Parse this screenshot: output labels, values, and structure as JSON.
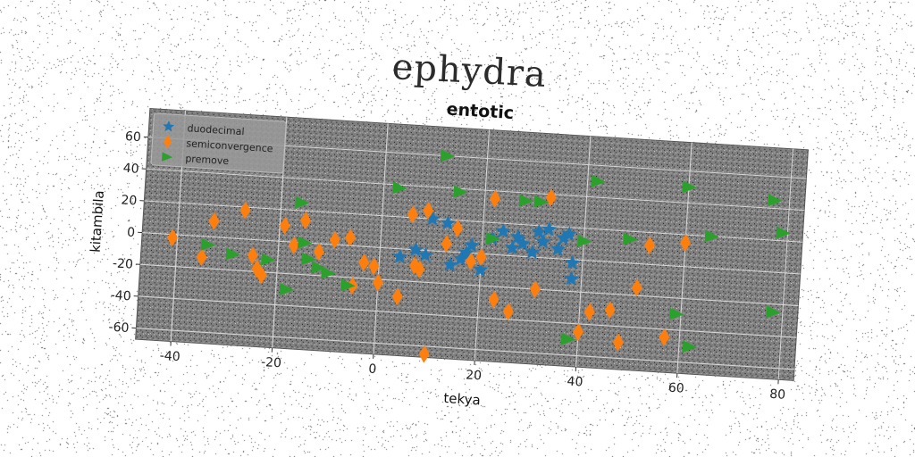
{
  "page": {
    "title": "ephydra"
  },
  "chart_data": {
    "type": "scatter",
    "title": "entotic",
    "xlabel": "tekya",
    "ylabel": "kitambila",
    "xlim": [
      -47,
      83
    ],
    "ylim": [
      -67,
      78
    ],
    "xticks": [
      -40,
      -20,
      0,
      20,
      40,
      60,
      80
    ],
    "yticks": [
      -60,
      -40,
      -20,
      0,
      20,
      40,
      60
    ],
    "grid": true,
    "legend_position": "top-left",
    "background_color": "#808080",
    "series": [
      {
        "name": "duodecimal",
        "marker": "star",
        "color": "#1f77b4",
        "points": [
          [
            4,
            -5
          ],
          [
            7,
            0
          ],
          [
            9,
            -3
          ],
          [
            10,
            20
          ],
          [
            13,
            18
          ],
          [
            14,
            -8
          ],
          [
            16,
            -4
          ],
          [
            17,
            0
          ],
          [
            18,
            5
          ],
          [
            22,
            10
          ],
          [
            24,
            15
          ],
          [
            26,
            5
          ],
          [
            27,
            12
          ],
          [
            28,
            8
          ],
          [
            30,
            3
          ],
          [
            31,
            16
          ],
          [
            32,
            10
          ],
          [
            33,
            18
          ],
          [
            35,
            6
          ],
          [
            36,
            13
          ],
          [
            37,
            16
          ],
          [
            38,
            -2
          ],
          [
            38,
            -12
          ],
          [
            20,
            -10
          ]
        ]
      },
      {
        "name": "semiconvergence",
        "color": "#ff7f0e",
        "marker": "diamond",
        "points": [
          [
            -41,
            -2
          ],
          [
            -35,
            -13
          ],
          [
            -33,
            10
          ],
          [
            -27,
            18
          ],
          [
            -25,
            -10
          ],
          [
            -24,
            -18
          ],
          [
            -23,
            -22
          ],
          [
            -19,
            10
          ],
          [
            -17,
            -2
          ],
          [
            -15,
            14
          ],
          [
            -12,
            -5
          ],
          [
            -9,
            3
          ],
          [
            -6,
            5
          ],
          [
            -5,
            -25
          ],
          [
            -3,
            -10
          ],
          [
            -1,
            -12
          ],
          [
            0,
            -22
          ],
          [
            4,
            -30
          ],
          [
            6,
            22
          ],
          [
            7,
            -10
          ],
          [
            8,
            -12
          ],
          [
            9,
            25
          ],
          [
            10,
            -65
          ],
          [
            13,
            5
          ],
          [
            15,
            15
          ],
          [
            18,
            -5
          ],
          [
            20,
            -2
          ],
          [
            22,
            35
          ],
          [
            23,
            -28
          ],
          [
            26,
            -35
          ],
          [
            31,
            -20
          ],
          [
            33,
            38
          ],
          [
            40,
            -45
          ],
          [
            42,
            -32
          ],
          [
            46,
            -30
          ],
          [
            48,
            -50
          ],
          [
            51,
            -15
          ],
          [
            53,
            12
          ],
          [
            57,
            -45
          ],
          [
            60,
            15
          ]
        ]
      },
      {
        "name": "premove",
        "color": "#2ca02c",
        "marker": "triangle-right",
        "points": [
          [
            -34,
            -5
          ],
          [
            -29,
            -10
          ],
          [
            -22,
            -12
          ],
          [
            -18,
            -30
          ],
          [
            -16,
            25
          ],
          [
            -15,
            0
          ],
          [
            -14,
            -10
          ],
          [
            -12,
            -15
          ],
          [
            -10,
            -18
          ],
          [
            -6,
            -25
          ],
          [
            3,
            38
          ],
          [
            12,
            60
          ],
          [
            15,
            38
          ],
          [
            22,
            10
          ],
          [
            28,
            35
          ],
          [
            31,
            35
          ],
          [
            38,
            -50
          ],
          [
            40,
            12
          ],
          [
            42,
            50
          ],
          [
            49,
            15
          ],
          [
            59,
            -30
          ],
          [
            60,
            50
          ],
          [
            62,
            -50
          ],
          [
            65,
            20
          ],
          [
            77,
            45
          ],
          [
            78,
            -25
          ],
          [
            79,
            25
          ]
        ]
      }
    ]
  }
}
